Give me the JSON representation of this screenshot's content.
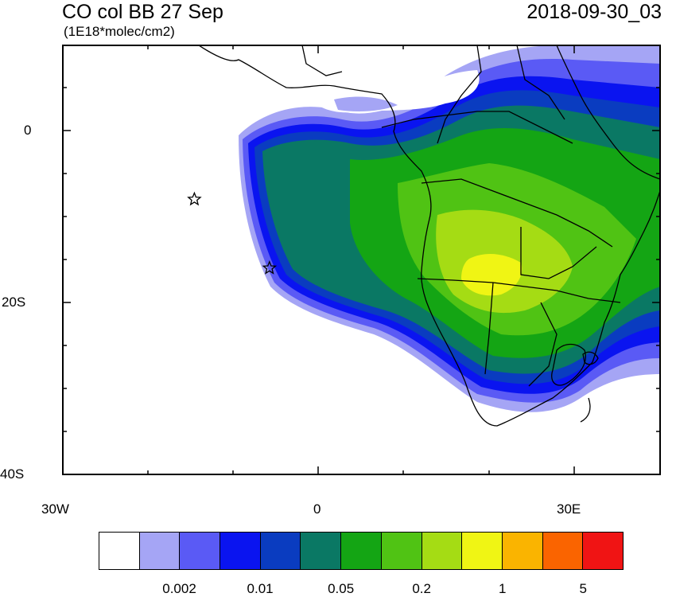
{
  "header": {
    "title": "CO col BB 27 Sep",
    "units": "(1E18*molec/cm2)",
    "datetime": "2018-09-30_03"
  },
  "axes": {
    "lat_labels": [
      "0",
      "20S",
      "40S"
    ],
    "lon_labels": [
      "30W",
      "0",
      "30E"
    ]
  },
  "colorbar": {
    "colors": [
      "#ffffff",
      "#a5a5f5",
      "#5a5af5",
      "#0a14f0",
      "#0a3cc0",
      "#0a7864",
      "#14a514",
      "#50c314",
      "#a5dc14",
      "#f0f514",
      "#fab400",
      "#fa6400",
      "#f01414"
    ],
    "labels": [
      "0.002",
      "0.01",
      "0.05",
      "0.2",
      "1",
      "5"
    ]
  },
  "markers": [
    {
      "name": "station-star-1",
      "lon": -14.5,
      "lat": -8
    },
    {
      "name": "station-star-2",
      "lon": -5.7,
      "lat": -16
    }
  ]
}
